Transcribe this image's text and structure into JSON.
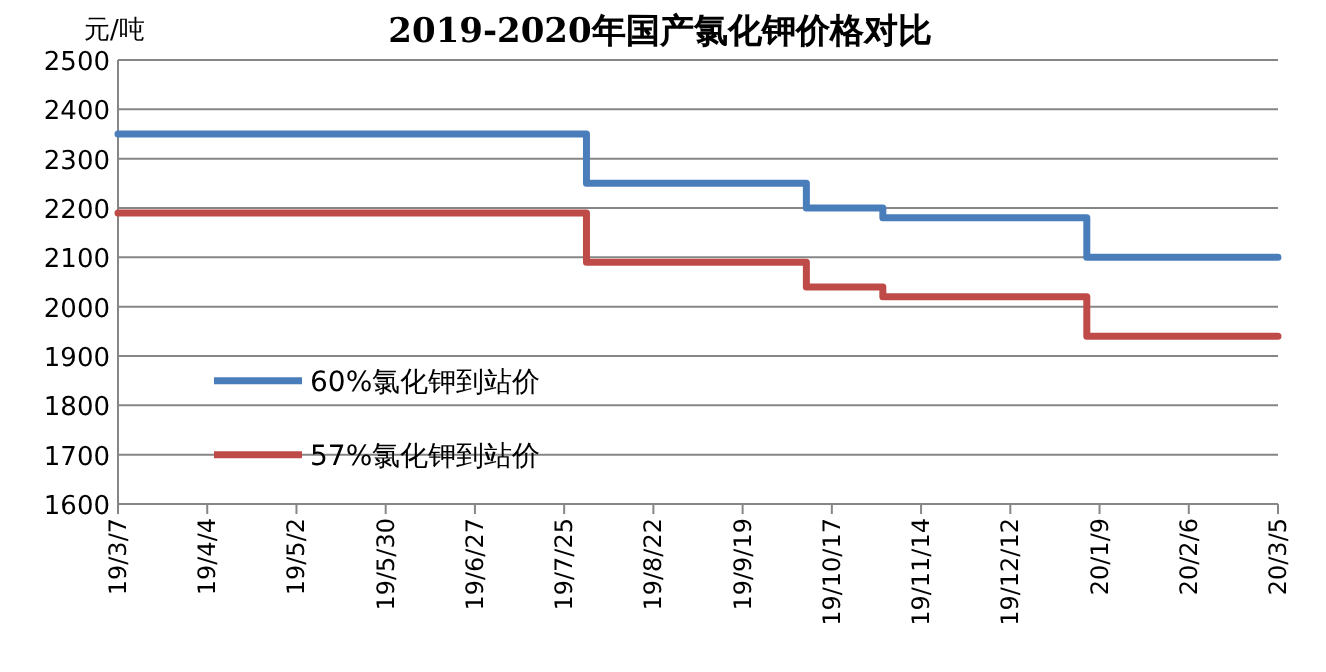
{
  "chart_data": {
    "type": "step",
    "title": "2019-2020年国产氯化钾价格对比",
    "ylabel": "元/吨",
    "x": [
      "2019-03-07",
      "2019-08-01",
      "2019-10-09",
      "2019-11-02",
      "2020-01-05",
      "2020-03-05"
    ],
    "series": [
      {
        "name": "60%氯化钾到站价",
        "color": "#4a7ebb",
        "values": [
          2350,
          2250,
          2200,
          2180,
          2100,
          2100
        ]
      },
      {
        "name": "57%氯化钾到站价",
        "color": "#be4b48",
        "values": [
          2190,
          2090,
          2040,
          2020,
          1940,
          1940
        ]
      }
    ],
    "xlim": [
      "2019-03-07",
      "2020-03-05"
    ],
    "xticks": [
      {
        "value": "2019-03-07",
        "label": "19/3/7"
      },
      {
        "value": "2019-04-04",
        "label": "19/4/4"
      },
      {
        "value": "2019-05-02",
        "label": "19/5/2"
      },
      {
        "value": "2019-05-30",
        "label": "19/5/30"
      },
      {
        "value": "2019-06-27",
        "label": "19/6/27"
      },
      {
        "value": "2019-07-25",
        "label": "19/7/25"
      },
      {
        "value": "2019-08-22",
        "label": "19/8/22"
      },
      {
        "value": "2019-09-19",
        "label": "19/9/19"
      },
      {
        "value": "2019-10-17",
        "label": "19/10/17"
      },
      {
        "value": "2019-11-14",
        "label": "19/11/14"
      },
      {
        "value": "2019-12-12",
        "label": "19/12/12"
      },
      {
        "value": "2020-01-09",
        "label": "20/1/9"
      },
      {
        "value": "2020-02-06",
        "label": "20/2/6"
      },
      {
        "value": "2020-03-05",
        "label": "20/3/5"
      }
    ],
    "ylim": [
      1600,
      2500
    ],
    "yticks": [
      1600,
      1700,
      1800,
      1900,
      2000,
      2100,
      2200,
      2300,
      2400,
      2500
    ],
    "grid": "y",
    "legend": "bottom left",
    "line_style": "solid",
    "marker": "none"
  }
}
